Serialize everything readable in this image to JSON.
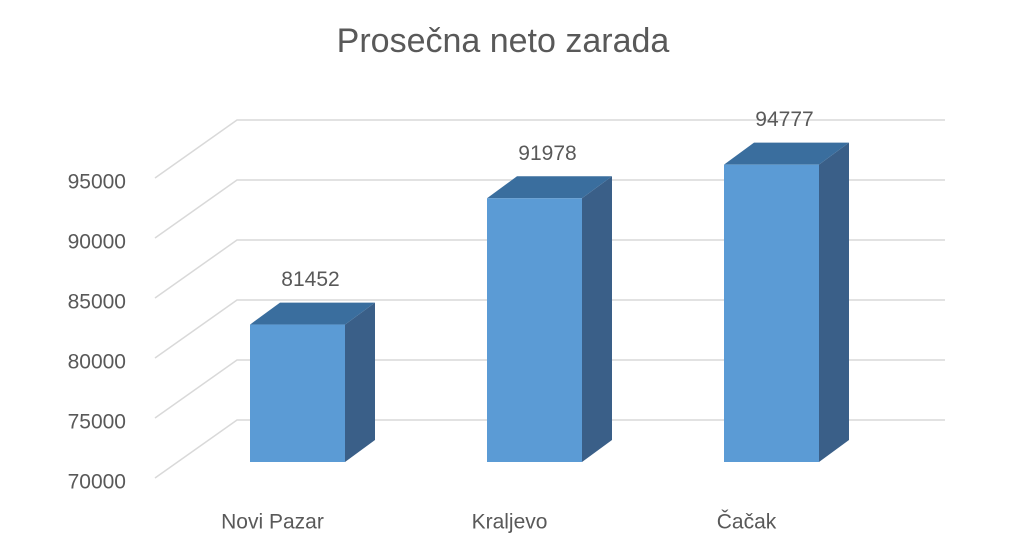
{
  "chart_data": {
    "type": "bar3d",
    "title": "Prosečna neto zarada",
    "categories": [
      "Novi Pazar",
      "Kraljevo",
      "Čačak"
    ],
    "values": [
      81452,
      91978,
      94777
    ],
    "color": "#5b9bd5",
    "side_color": "#3a5f88",
    "top_color": "#3a6e9e",
    "ylim": [
      70000,
      95000
    ],
    "yticks": [
      70000,
      75000,
      80000,
      85000,
      90000,
      95000
    ],
    "grid": true
  }
}
